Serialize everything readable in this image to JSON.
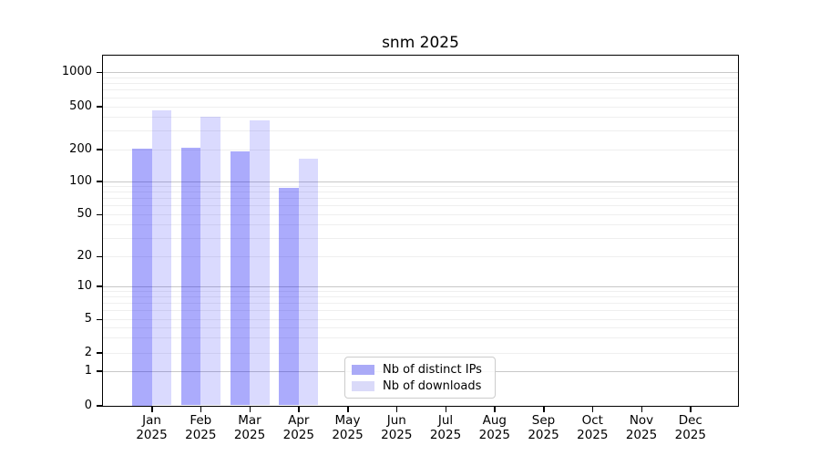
{
  "title": "snm 2025",
  "colors": {
    "distinct_ips_fill": "rgba(0,0,245,0.33)",
    "downloads_fill": "rgba(0,0,245,0.145)",
    "distinct_ips_solid": "#aaaaf7",
    "downloads_solid": "#dadaf9",
    "major_grid": "#c8c8c8",
    "minor_grid": "#efefef",
    "axis": "#000000"
  },
  "legend": {
    "items": [
      {
        "label": "Nb of distinct IPs",
        "series_key": "distinct_ips"
      },
      {
        "label": "Nb of downloads",
        "series_key": "downloads"
      }
    ]
  },
  "chart_data": {
    "type": "bar",
    "title": "snm 2025",
    "categories": [
      "Jan",
      "Feb",
      "Mar",
      "Apr",
      "May",
      "Jun",
      "Jul",
      "Aug",
      "Sep",
      "Oct",
      "Nov",
      "Dec"
    ],
    "category_year": "2025",
    "series": [
      {
        "name": "Nb of distinct IPs",
        "key": "distinct_ips",
        "values": [
          202,
          205,
          190,
          87,
          null,
          null,
          null,
          null,
          null,
          null,
          null,
          null
        ]
      },
      {
        "name": "Nb of downloads",
        "key": "downloads",
        "values": [
          460,
          400,
          372,
          162,
          null,
          null,
          null,
          null,
          null,
          null,
          null,
          null
        ]
      }
    ],
    "xlabel": "",
    "ylabel": "",
    "y_scale": "symlog",
    "y_ticks": [
      0,
      1,
      2,
      5,
      10,
      20,
      50,
      100,
      200,
      500,
      1000
    ],
    "y_minor_gridlines": [
      3,
      4,
      6,
      7,
      8,
      9,
      30,
      40,
      60,
      70,
      80,
      90,
      300,
      400,
      600,
      700,
      800,
      900
    ],
    "y_major_gridlines": [
      1,
      10,
      100,
      1000
    ],
    "ylim": [
      0,
      1400
    ],
    "grid": "horizontal, major and minor",
    "legend_position": "inside bottom-center"
  }
}
